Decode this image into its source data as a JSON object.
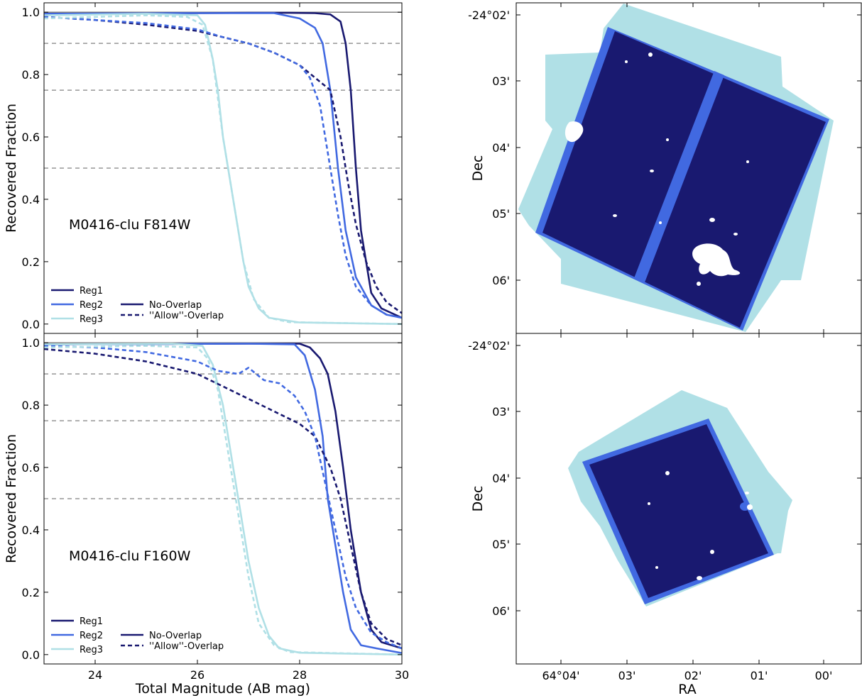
{
  "colors": {
    "reg1": "#191970",
    "reg2": "#4169e1",
    "reg3": "#b0e0e6",
    "reference": "#808080"
  },
  "shared_labels": {
    "xlabel": "Total Magnitude (AB mag)",
    "ylabel": "Recovered Fraction",
    "map_xlabel": "RA",
    "map_ylabel": "Dec"
  },
  "chart_data": [
    {
      "type": "line",
      "panel": "top-left",
      "annotation": "M0416-clu F814W",
      "xlabel": "",
      "ylabel": "Recovered Fraction",
      "xlim": [
        23,
        30
      ],
      "ylim": [
        -0.03,
        1.03
      ],
      "xticks": [
        "24",
        "26",
        "28",
        "30"
      ],
      "yticks": [
        "0.0",
        "0.2",
        "0.4",
        "0.6",
        "0.8",
        "1.0"
      ],
      "reference_lines": [
        1.0,
        0.9,
        0.75,
        0.5
      ],
      "legend": {
        "placement": "bottom-left",
        "regions": [
          "Reg1",
          "Reg2",
          "Reg3"
        ],
        "styles": [
          "No-Overlap",
          "''Allow''-Overlap"
        ]
      },
      "series": [
        {
          "name": "Reg1",
          "style": "No-Overlap",
          "x": [
            23,
            26,
            27,
            27.8,
            28.3,
            28.6,
            28.8,
            28.9,
            29.0,
            29.1,
            29.2,
            29.4,
            29.6,
            30
          ],
          "y": [
            0.995,
            0.997,
            0.998,
            0.998,
            0.997,
            0.993,
            0.97,
            0.9,
            0.75,
            0.5,
            0.3,
            0.1,
            0.05,
            0.02
          ]
        },
        {
          "name": "Reg2",
          "style": "No-Overlap",
          "x": [
            23,
            26,
            27,
            27.5,
            28.0,
            28.3,
            28.45,
            28.6,
            28.75,
            28.9,
            29.1,
            29.4,
            29.7,
            30
          ],
          "y": [
            0.995,
            0.997,
            0.997,
            0.997,
            0.98,
            0.95,
            0.9,
            0.75,
            0.5,
            0.3,
            0.15,
            0.06,
            0.03,
            0.02
          ]
        },
        {
          "name": "Reg3",
          "style": "No-Overlap",
          "x": [
            23,
            25,
            26.0,
            26.15,
            26.3,
            26.4,
            26.5,
            26.6,
            26.7,
            26.8,
            26.9,
            27.0,
            27.2,
            27.4,
            28,
            30
          ],
          "y": [
            0.99,
            0.995,
            0.99,
            0.96,
            0.85,
            0.75,
            0.6,
            0.5,
            0.4,
            0.3,
            0.2,
            0.12,
            0.05,
            0.02,
            0.005,
            0.0
          ]
        },
        {
          "name": "Reg1",
          "style": "''Allow''-Overlap",
          "x": [
            23,
            24,
            25,
            26,
            26.5,
            27,
            27.5,
            28,
            28.3,
            28.6,
            28.8,
            28.95,
            29.1,
            29.3,
            29.5,
            29.7,
            30
          ],
          "y": [
            0.985,
            0.975,
            0.96,
            0.94,
            0.92,
            0.9,
            0.87,
            0.83,
            0.79,
            0.75,
            0.6,
            0.45,
            0.32,
            0.2,
            0.12,
            0.07,
            0.035
          ]
        },
        {
          "name": "Reg2",
          "style": "''Allow''-Overlap",
          "x": [
            23,
            24,
            25,
            26,
            26.5,
            27,
            27.5,
            28,
            28.2,
            28.4,
            28.6,
            28.75,
            28.9,
            29.1,
            29.4,
            29.7,
            30
          ],
          "y": [
            0.985,
            0.975,
            0.965,
            0.945,
            0.92,
            0.9,
            0.87,
            0.83,
            0.79,
            0.7,
            0.5,
            0.35,
            0.22,
            0.12,
            0.06,
            0.03,
            0.02
          ]
        },
        {
          "name": "Reg3",
          "style": "''Allow''-Overlap",
          "x": [
            23,
            25,
            25.8,
            26.1,
            26.3,
            26.5,
            26.7,
            26.9,
            27.1,
            27.4,
            27.8,
            30
          ],
          "y": [
            0.98,
            0.99,
            0.985,
            0.96,
            0.85,
            0.6,
            0.4,
            0.2,
            0.08,
            0.02,
            0.006,
            0.0
          ]
        }
      ]
    },
    {
      "type": "line",
      "panel": "bottom-left",
      "annotation": "M0416-clu F160W",
      "xlabel": "Total Magnitude (AB mag)",
      "ylabel": "Recovered Fraction",
      "xlim": [
        23,
        30
      ],
      "ylim": [
        -0.03,
        1.03
      ],
      "xticks": [
        "24",
        "26",
        "28",
        "30"
      ],
      "yticks": [
        "0.0",
        "0.2",
        "0.4",
        "0.6",
        "0.8",
        "1.0"
      ],
      "reference_lines": [
        1.0,
        0.9,
        0.75,
        0.5
      ],
      "legend": {
        "placement": "bottom-left",
        "regions": [
          "Reg1",
          "Reg2",
          "Reg3"
        ],
        "styles": [
          "No-Overlap",
          "''Allow''-Overlap"
        ]
      },
      "series": [
        {
          "name": "Reg1",
          "style": "No-Overlap",
          "x": [
            23,
            27,
            28.0,
            28.2,
            28.4,
            28.55,
            28.7,
            28.85,
            29.0,
            29.2,
            29.4,
            29.6,
            30
          ],
          "y": [
            0.995,
            0.997,
            0.997,
            0.985,
            0.95,
            0.9,
            0.78,
            0.6,
            0.4,
            0.2,
            0.08,
            0.04,
            0.02
          ]
        },
        {
          "name": "Reg2",
          "style": "No-Overlap",
          "x": [
            23,
            27,
            27.9,
            28.1,
            28.3,
            28.45,
            28.55,
            28.7,
            28.85,
            29.0,
            29.2,
            29.5,
            30
          ],
          "y": [
            0.995,
            0.997,
            0.995,
            0.96,
            0.85,
            0.7,
            0.5,
            0.35,
            0.2,
            0.08,
            0.03,
            0.02,
            0.005
          ]
        },
        {
          "name": "Reg3",
          "style": "No-Overlap",
          "x": [
            23,
            25.5,
            26.1,
            26.3,
            26.5,
            26.7,
            26.85,
            27.0,
            27.2,
            27.4,
            27.6,
            28,
            30
          ],
          "y": [
            0.995,
            0.997,
            0.99,
            0.93,
            0.8,
            0.6,
            0.45,
            0.3,
            0.15,
            0.06,
            0.02,
            0.006,
            0.0
          ]
        },
        {
          "name": "Reg1",
          "style": "''Allow''-Overlap",
          "x": [
            23,
            24,
            25,
            26,
            26.5,
            27,
            27.5,
            28,
            28.3,
            28.6,
            28.8,
            29.0,
            29.2,
            29.4,
            29.7,
            30
          ],
          "y": [
            0.98,
            0.965,
            0.94,
            0.9,
            0.86,
            0.82,
            0.78,
            0.74,
            0.7,
            0.6,
            0.5,
            0.35,
            0.2,
            0.1,
            0.05,
            0.03
          ]
        },
        {
          "name": "Reg2",
          "style": "''Allow''-Overlap",
          "x": [
            23,
            24,
            25,
            26,
            26.4,
            26.8,
            27.0,
            27.3,
            27.6,
            27.9,
            28.1,
            28.3,
            28.5,
            28.7,
            28.9,
            29.1,
            29.4,
            29.7,
            30
          ],
          "y": [
            0.99,
            0.985,
            0.97,
            0.94,
            0.91,
            0.9,
            0.92,
            0.88,
            0.87,
            0.83,
            0.78,
            0.7,
            0.55,
            0.4,
            0.25,
            0.15,
            0.07,
            0.04,
            0.02
          ]
        },
        {
          "name": "Reg3",
          "style": "''Allow''-Overlap",
          "x": [
            23,
            25,
            26.0,
            26.2,
            26.4,
            26.6,
            26.8,
            27.0,
            27.2,
            27.5,
            27.8,
            30
          ],
          "y": [
            0.985,
            0.99,
            0.985,
            0.95,
            0.85,
            0.65,
            0.45,
            0.25,
            0.1,
            0.03,
            0.008,
            0.0
          ]
        }
      ]
    }
  ],
  "maps": [
    {
      "panel": "top-right",
      "y_tick_labels": [
        "-24°02'",
        "03'",
        "04'",
        "05'",
        "06'"
      ],
      "legend_key": [
        "Reg1",
        "Reg2",
        "Reg3"
      ]
    },
    {
      "panel": "bottom-right",
      "y_tick_labels": [
        "-24°02'",
        "03'",
        "04'",
        "05'",
        "06'"
      ],
      "x_tick_labels": [
        "64°04'",
        "03'",
        "02'",
        "01'",
        "00'"
      ],
      "legend_key": [
        "Reg1",
        "Reg2",
        "Reg3"
      ]
    }
  ]
}
